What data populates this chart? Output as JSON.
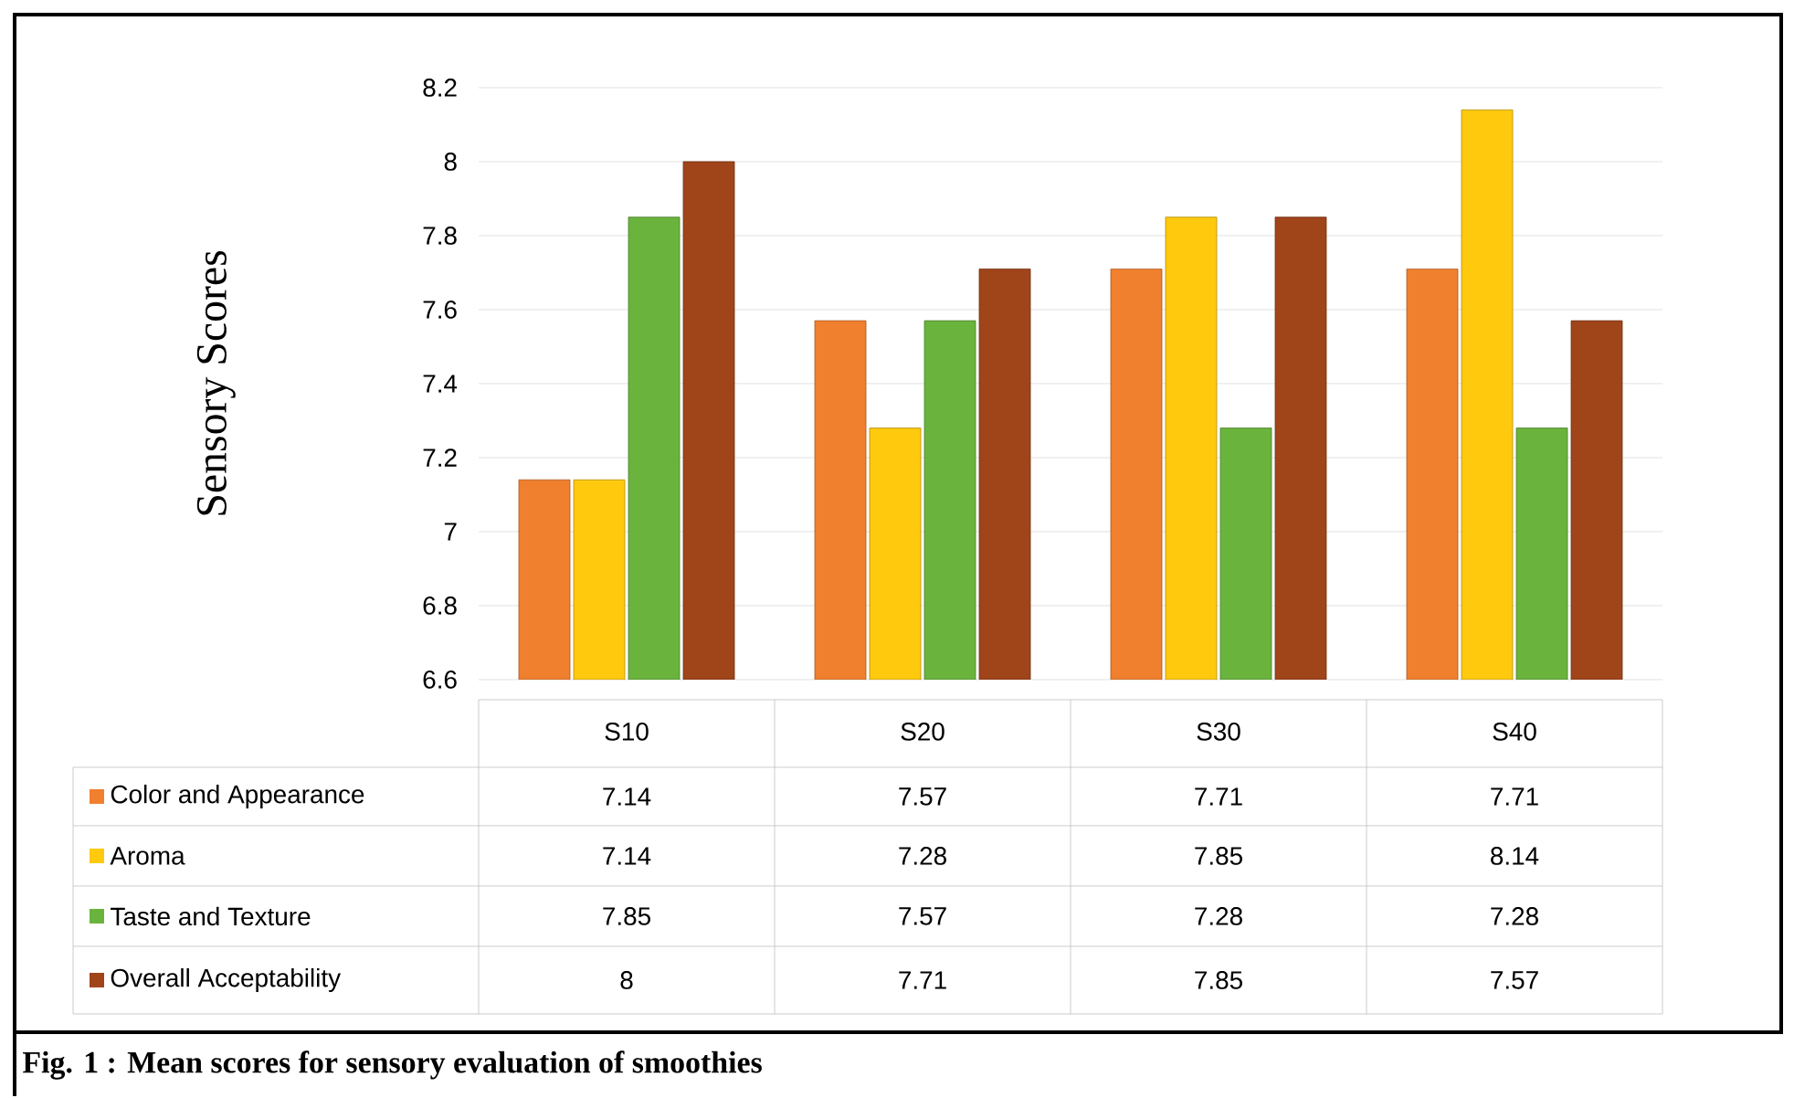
{
  "chart_data": {
    "type": "bar",
    "ylabel": "Sensory Scores",
    "categories": [
      "S10",
      "S20",
      "S30",
      "S40"
    ],
    "series": [
      {
        "name": "Color and Appearance",
        "color": "#f07f2e",
        "values": [
          7.14,
          7.57,
          7.71,
          7.71
        ]
      },
      {
        "name": "Aroma",
        "color": "#ffc90e",
        "values": [
          7.14,
          7.28,
          7.85,
          8.14
        ]
      },
      {
        "name": "Taste and Texture",
        "color": "#6ab43e",
        "values": [
          7.85,
          7.57,
          7.28,
          7.28
        ]
      },
      {
        "name": "Overall Acceptability",
        "color": "#a0441a",
        "values": [
          8,
          7.71,
          7.85,
          7.57
        ]
      }
    ],
    "ylim": [
      6.6,
      8.2
    ],
    "yticks": [
      6.6,
      6.8,
      7,
      7.2,
      7.4,
      7.6,
      7.8,
      8,
      8.2
    ],
    "grid": "y",
    "legend": "bottom",
    "data_labels": true,
    "annotations": [
      "Fig. 1 :    Mean scores for sensory evaluation of smoothies"
    ]
  }
}
